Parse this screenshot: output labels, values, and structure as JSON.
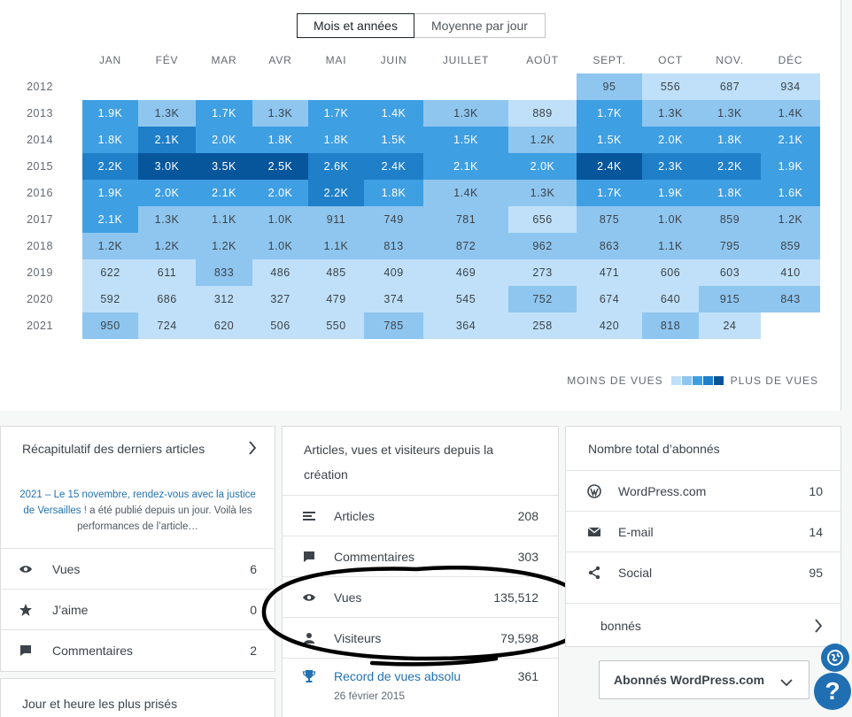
{
  "tabs": {
    "months_years": "Mois et années",
    "average_per_day": "Moyenne par jour"
  },
  "heatmap": {
    "months": [
      "JAN",
      "FÉV",
      "MAR",
      "AVR",
      "MAI",
      "JUIN",
      "JUILLET",
      "AOÛT",
      "SEPT.",
      "OCT",
      "NOV.",
      "DÉC"
    ],
    "rows": [
      {
        "year": "2012",
        "values": [
          "",
          "",
          "",
          "",
          "",
          "",
          "",
          "",
          "95",
          "556",
          "687",
          "934"
        ],
        "levels": [
          0,
          0,
          0,
          0,
          0,
          0,
          0,
          0,
          2,
          1,
          1,
          1
        ]
      },
      {
        "year": "2013",
        "values": [
          "1.9K",
          "1.3K",
          "1.7K",
          "1.3K",
          "1.7K",
          "1.4K",
          "1.3K",
          "889",
          "1.7K",
          "1.3K",
          "1.3K",
          "1.4K"
        ],
        "levels": [
          3,
          2,
          3,
          2,
          3,
          3,
          2,
          1,
          3,
          2,
          2,
          2
        ]
      },
      {
        "year": "2014",
        "values": [
          "1.8K",
          "2.1K",
          "2.0K",
          "1.8K",
          "1.8K",
          "1.5K",
          "1.5K",
          "1.2K",
          "1.5K",
          "2.0K",
          "1.8K",
          "2.1K"
        ],
        "levels": [
          3,
          4,
          3,
          3,
          3,
          3,
          3,
          2,
          3,
          3,
          3,
          3
        ]
      },
      {
        "year": "2015",
        "values": [
          "2.2K",
          "3.0K",
          "3.5K",
          "2.5K",
          "2.6K",
          "2.4K",
          "2.1K",
          "2.0K",
          "2.4K",
          "2.3K",
          "2.2K",
          "1.9K"
        ],
        "levels": [
          4,
          5,
          5,
          5,
          4,
          4,
          3,
          3,
          5,
          4,
          4,
          3
        ]
      },
      {
        "year": "2016",
        "values": [
          "1.9K",
          "2.0K",
          "2.1K",
          "2.0K",
          "2.2K",
          "1.8K",
          "1.4K",
          "1.3K",
          "1.7K",
          "1.9K",
          "1.8K",
          "1.6K"
        ],
        "levels": [
          3,
          3,
          3,
          3,
          4,
          3,
          2,
          2,
          3,
          3,
          3,
          3
        ]
      },
      {
        "year": "2017",
        "values": [
          "2.1K",
          "1.3K",
          "1.1K",
          "1.0K",
          "911",
          "749",
          "781",
          "656",
          "875",
          "1.0K",
          "859",
          "1.2K"
        ],
        "levels": [
          3,
          2,
          2,
          2,
          2,
          2,
          2,
          1,
          2,
          2,
          2,
          2
        ]
      },
      {
        "year": "2018",
        "values": [
          "1.2K",
          "1.2K",
          "1.2K",
          "1.0K",
          "1.1K",
          "813",
          "872",
          "962",
          "863",
          "1.1K",
          "795",
          "859"
        ],
        "levels": [
          2,
          2,
          2,
          2,
          2,
          2,
          2,
          2,
          2,
          2,
          2,
          2
        ]
      },
      {
        "year": "2019",
        "values": [
          "622",
          "611",
          "833",
          "486",
          "485",
          "409",
          "469",
          "273",
          "471",
          "606",
          "603",
          "410"
        ],
        "levels": [
          1,
          1,
          2,
          1,
          1,
          1,
          1,
          1,
          1,
          1,
          1,
          1
        ]
      },
      {
        "year": "2020",
        "values": [
          "592",
          "686",
          "312",
          "327",
          "479",
          "374",
          "545",
          "752",
          "674",
          "640",
          "915",
          "843"
        ],
        "levels": [
          1,
          1,
          1,
          1,
          1,
          1,
          1,
          2,
          1,
          1,
          2,
          2
        ]
      },
      {
        "year": "2021",
        "values": [
          "950",
          "724",
          "620",
          "506",
          "550",
          "785",
          "364",
          "258",
          "420",
          "818",
          "24",
          ""
        ],
        "levels": [
          2,
          1,
          1,
          1,
          1,
          2,
          1,
          1,
          1,
          2,
          1,
          0
        ]
      }
    ],
    "palette": [
      "#ffffff",
      "#bfe0f8",
      "#8fc6ef",
      "#3f9fe3",
      "#1f7fc9",
      "#07569c"
    ],
    "legend_less": "MOINS DE VUES",
    "legend_more": "PLUS DE VUES"
  },
  "recent": {
    "title": "Récapitulatif des derniers articles",
    "article_link": "2021 – Le 15 novembre, rendez-vous avec la justice de Versailles !",
    "article_text": " a été publié depuis un jour. Voilà les performances de l’article…",
    "rows": [
      {
        "icon": "eye-icon",
        "label": "Vues",
        "value": "6"
      },
      {
        "icon": "star-icon",
        "label": "J’aime",
        "value": "0"
      },
      {
        "icon": "comment-icon",
        "label": "Commentaires",
        "value": "2"
      }
    ],
    "bottom_title": "Jour et heure les plus prisés"
  },
  "alltime": {
    "title": "Articles, vues et visiteurs depuis la création",
    "rows": [
      {
        "icon": "posts-icon",
        "label": "Articles",
        "value": "208"
      },
      {
        "icon": "comment-icon",
        "label": "Commentaires",
        "value": "303"
      },
      {
        "icon": "eye-icon",
        "label": "Vues",
        "value": "135,512"
      },
      {
        "icon": "person-icon",
        "label": "Visiteurs",
        "value": "79,598"
      }
    ],
    "record_label": "Record de vues absolu",
    "record_date": "26 février 2015",
    "record_value": "361"
  },
  "followers": {
    "title": "Nombre total d’abonnés",
    "rows": [
      {
        "icon": "wordpress-icon",
        "label": "WordPress.com",
        "value": "10"
      },
      {
        "icon": "mail-icon",
        "label": "E-mail",
        "value": "14"
      },
      {
        "icon": "share-icon",
        "label": "Social",
        "value": "95"
      }
    ],
    "link_label": "bonnés",
    "dropdown_value": "Abonnés WordPress.com"
  }
}
